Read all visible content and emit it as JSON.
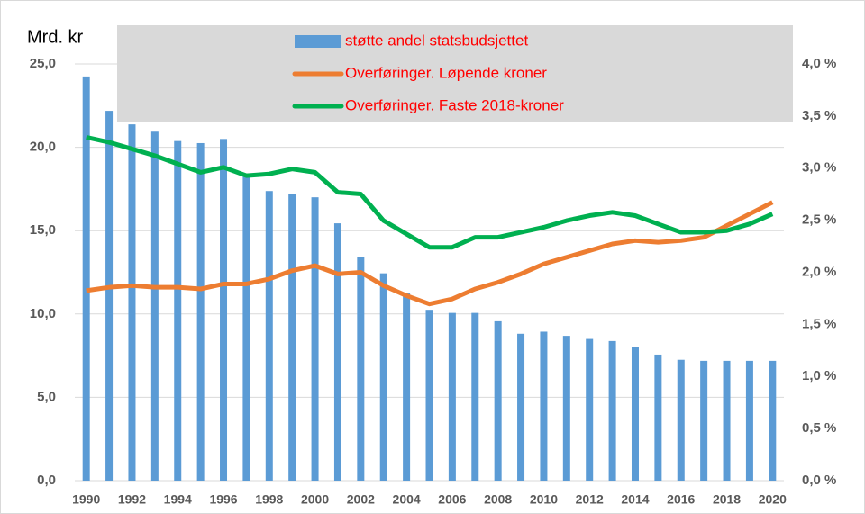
{
  "chart_data": {
    "type": "bar-line",
    "ylabel": "Mrd. kr",
    "categories": [
      "1990",
      null,
      "1992",
      null,
      "1994",
      null,
      "1996",
      null,
      "1998",
      null,
      "2000",
      null,
      "2002",
      null,
      "2004",
      null,
      "2006",
      null,
      "2008",
      null,
      "2010",
      null,
      "2012",
      null,
      "2014",
      null,
      "2016",
      null,
      "2018",
      null,
      "2020"
    ],
    "series": [
      {
        "name": "støtte andel statsbudsjettet",
        "type": "bar",
        "axis": "y2",
        "color": "#5b9bd5",
        "values": [
          3.88,
          3.55,
          3.42,
          3.35,
          3.26,
          3.24,
          3.28,
          2.93,
          2.78,
          2.75,
          2.72,
          2.47,
          2.15,
          1.99,
          1.8,
          1.64,
          1.61,
          1.61,
          1.53,
          1.41,
          1.43,
          1.39,
          1.36,
          1.34,
          1.28,
          1.21,
          1.16,
          1.15,
          1.15,
          1.15,
          1.15
        ]
      },
      {
        "name": "Overføringer. Løpende kroner",
        "type": "line",
        "color": "#ed7d31",
        "values": [
          11.4,
          11.6,
          11.7,
          11.6,
          11.6,
          11.5,
          11.8,
          11.8,
          12.1,
          12.6,
          12.9,
          12.4,
          12.5,
          11.7,
          11.1,
          10.6,
          10.9,
          11.5,
          11.9,
          12.4,
          13.0,
          13.4,
          13.8,
          14.2,
          14.4,
          14.3,
          14.4,
          14.6,
          15.3,
          16.0,
          16.7
        ]
      },
      {
        "name": "Overføringer. Faste 2018-kroner",
        "type": "line",
        "color": "#00b050",
        "values": [
          20.6,
          20.3,
          19.9,
          19.5,
          19.0,
          18.5,
          18.8,
          18.3,
          18.4,
          18.7,
          18.5,
          17.3,
          17.2,
          15.6,
          14.8,
          14.0,
          14.0,
          14.6,
          14.6,
          14.9,
          15.2,
          15.6,
          15.9,
          16.1,
          15.9,
          15.4,
          14.9,
          14.9,
          15.0,
          15.4,
          16.0
        ]
      }
    ],
    "ylim": [
      0,
      25
    ],
    "yticks": [
      {
        "value": 0,
        "label": "0,0"
      },
      {
        "value": 5,
        "label": "5,0"
      },
      {
        "value": 10,
        "label": "10,0"
      },
      {
        "value": 15,
        "label": "15,0"
      },
      {
        "value": 20,
        "label": "20,0"
      },
      {
        "value": 25,
        "label": "25,0"
      }
    ],
    "y2lim": [
      0,
      4
    ],
    "y2ticks": [
      {
        "value": 0,
        "label": "0,0 %"
      },
      {
        "value": 0.5,
        "label": "0,5 %"
      },
      {
        "value": 1,
        "label": "1,0 %"
      },
      {
        "value": 1.5,
        "label": "1,5 %"
      },
      {
        "value": 2,
        "label": "2,0 %"
      },
      {
        "value": 2.5,
        "label": "2,5 %"
      },
      {
        "value": 3,
        "label": "3,0 %"
      },
      {
        "value": 3.5,
        "label": "3,5 %"
      },
      {
        "value": 4,
        "label": "4,0 %"
      }
    ],
    "grid": true,
    "legend": "top"
  }
}
